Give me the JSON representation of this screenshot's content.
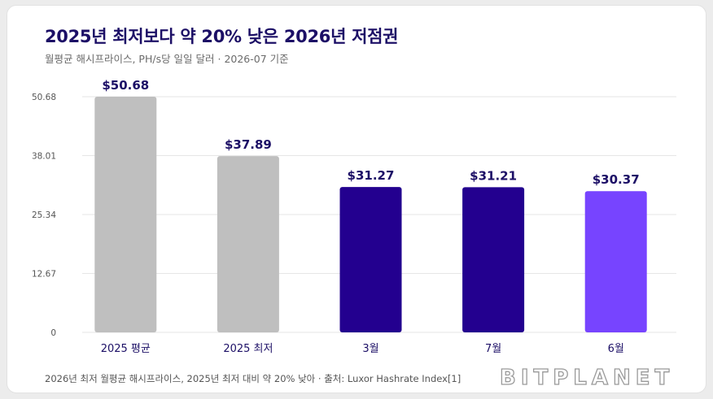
{
  "header": {
    "title": "2025년 최저보다 약 20% 낮은 2026년 저점권",
    "subtitle": "월평균 해시프라이스, PH/s당 일일 달러 · 2026-07 기준"
  },
  "chart_data": {
    "type": "bar",
    "title": "2025년 최저보다 약 20% 낮은 2026년 저점권",
    "subtitle": "월평균 해시프라이스, PH/s당 일일 달러 · 2026-07 기준",
    "categories": [
      "2025 평균",
      "2025 최저",
      "3월",
      "7월",
      "6월"
    ],
    "values": [
      50.68,
      37.89,
      31.27,
      31.21,
      30.37
    ],
    "value_labels": [
      "$50.68",
      "$37.89",
      "$31.27",
      "$31.21",
      "$30.37"
    ],
    "bar_colors": [
      "#bfbfbf",
      "#bfbfbf",
      "#23008f",
      "#23008f",
      "#7744ff"
    ],
    "yticks": [
      0,
      12.67,
      25.34,
      38.01,
      50.68
    ],
    "ytick_labels": [
      "0",
      "12.67",
      "25.34",
      "38.01",
      "50.68"
    ],
    "ylim": [
      0,
      50.68
    ],
    "grid": true,
    "xlabel": "",
    "ylabel": ""
  },
  "footer": {
    "note": "2026년 최저 월평균 해시프라이스, 2025년 최저 대비 약 20% 낮아 · 출처: Luxor Hashrate Index[1]",
    "brand": "BITPLANET"
  },
  "colors": {
    "title": "#1c0f66",
    "value_label": "#1c0f66",
    "grid": "#e6e6e6",
    "axis_text": "#555555",
    "category_text": "#1c0f66"
  }
}
